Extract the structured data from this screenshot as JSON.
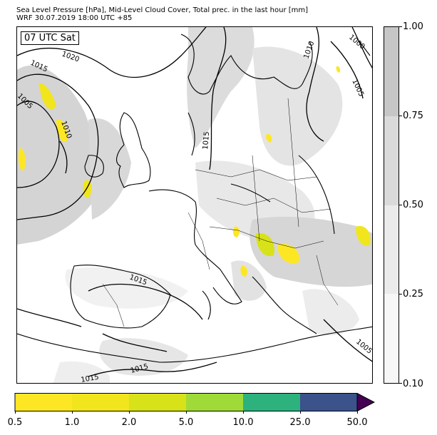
{
  "header": {
    "title_line1": "Sea Level Pressure [hPa], Mid-Level Cloud Cover, Total prec. in the last hour [mm]",
    "title_line2": "WRF 30.07.2019 18:00 UTC +85"
  },
  "map": {
    "time_label": "07 UTC Sat",
    "isobar_labels": [
      "1020",
      "1015",
      "1005",
      "1010",
      "1015",
      "1010",
      "1000",
      "1005",
      "1015",
      "1015",
      "1015",
      "1005"
    ]
  },
  "cloud_colorbar": {
    "ticks": [
      "1.00",
      "0.75",
      "0.50",
      "0.25",
      "0.10"
    ],
    "colors": [
      "#c6c6c6",
      "#dadada",
      "#ebebeb",
      "#f7f7f7"
    ]
  },
  "precip_colorbar": {
    "ticks": [
      "0.5",
      "1.0",
      "2.0",
      "5.0",
      "10.0",
      "25.0",
      "50.0"
    ],
    "colors": [
      "#fde725",
      "#f1e51d",
      "#d8e219",
      "#a0da39",
      "#4ac16d",
      "#2db27d",
      "#3b528b"
    ],
    "extend_color": "#440154"
  }
}
